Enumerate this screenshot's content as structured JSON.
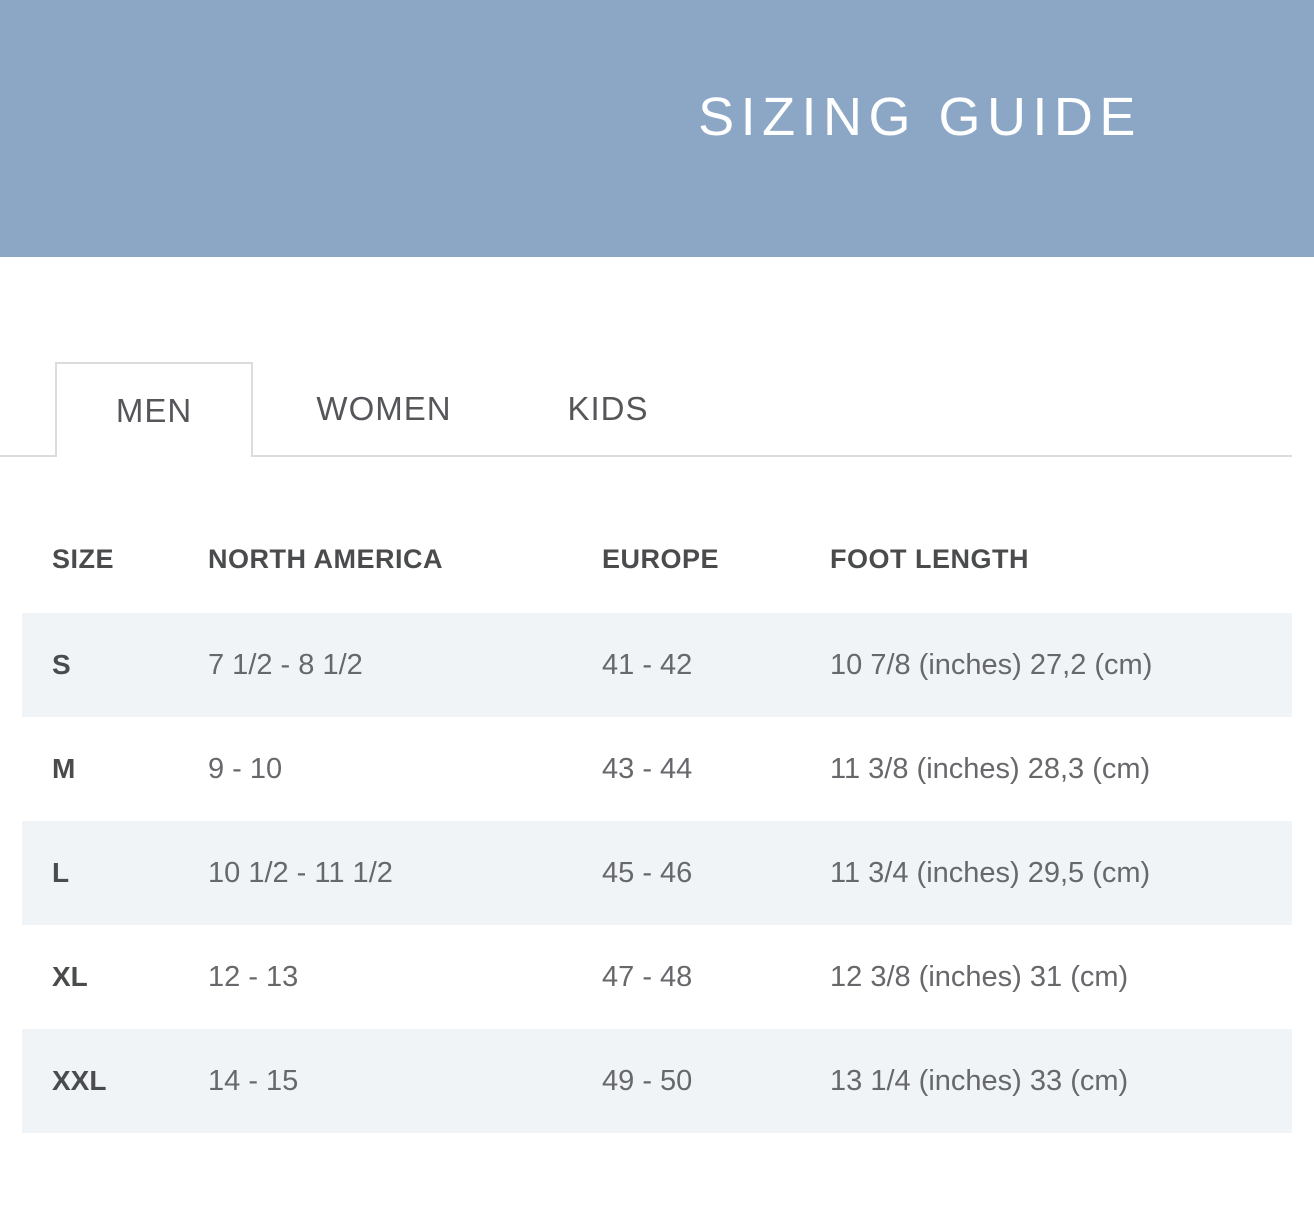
{
  "banner": {
    "title": "SIZING GUIDE",
    "bg_color": "#8CA7C5",
    "text_color": "#FFFFFF"
  },
  "tabs": {
    "items": [
      {
        "label": "MEN",
        "active": true
      },
      {
        "label": "WOMEN",
        "active": false
      },
      {
        "label": "KIDS",
        "active": false
      }
    ],
    "border_color": "#DCDCDC"
  },
  "size_table": {
    "columns": [
      "SIZE",
      "NORTH AMERICA",
      "EUROPE",
      "FOOT LENGTH"
    ],
    "rows": [
      {
        "size": "S",
        "north_america": "7 1/2 - 8 1/2",
        "europe": "41 - 42",
        "foot_length": "10 7/8 (inches) 27,2 (cm)"
      },
      {
        "size": "M",
        "north_america": "9 - 10",
        "europe": "43 - 44",
        "foot_length": "11 3/8 (inches) 28,3 (cm)"
      },
      {
        "size": "L",
        "north_america": "10 1/2 - 11 1/2",
        "europe": "45 - 46",
        "foot_length": "11 3/4 (inches) 29,5 (cm)"
      },
      {
        "size": "XL",
        "north_america": "12 - 13",
        "europe": "47 - 48",
        "foot_length": "12 3/8 (inches) 31 (cm)"
      },
      {
        "size": "XXL",
        "north_america": "14 - 15",
        "europe": "49 - 50",
        "foot_length": "13 1/4 (inches) 33 (cm)"
      }
    ],
    "stripe_color": "#F1F4F7"
  }
}
